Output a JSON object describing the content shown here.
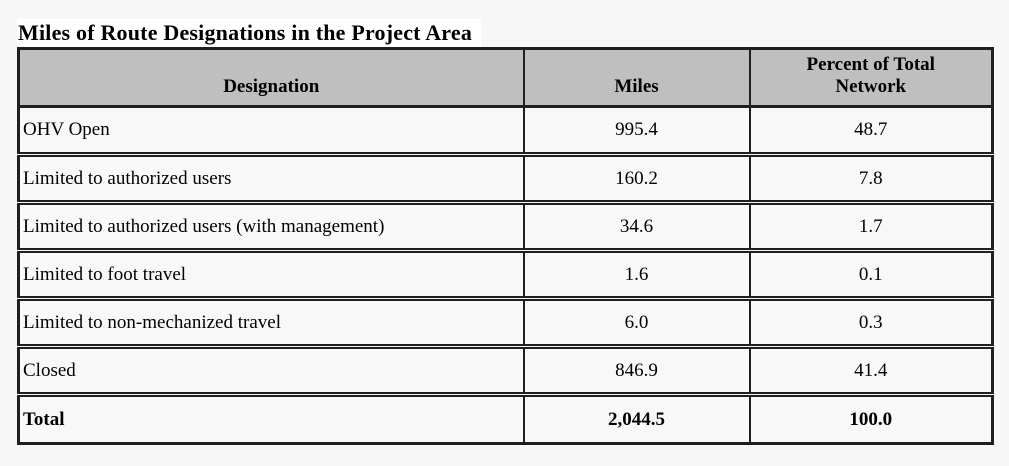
{
  "title": "Miles of Route Designations in the Project Area",
  "table": {
    "columns": {
      "designation": "Designation",
      "miles": "Miles",
      "percent": "Percent of Total Network"
    },
    "rows": [
      {
        "designation": "OHV Open",
        "miles": "995.4",
        "percent": "48.7"
      },
      {
        "designation": "Limited to authorized users",
        "miles": "160.2",
        "percent": "7.8"
      },
      {
        "designation": "Limited to authorized users (with management)",
        "miles": "34.6",
        "percent": "1.7"
      },
      {
        "designation": "Limited to foot travel",
        "miles": "1.6",
        "percent": "0.1"
      },
      {
        "designation": "Limited to non-mechanized travel",
        "miles": "6.0",
        "percent": "0.3"
      },
      {
        "designation": "Closed",
        "miles": "846.9",
        "percent": "41.4"
      }
    ],
    "total": {
      "designation": "Total",
      "miles": "2,044.5",
      "percent": "100.0"
    }
  },
  "colors": {
    "page_bg": "#f7f7f7",
    "title_bg": "#ffffff",
    "header_bg": "#bfbfbf",
    "cell_bg": "#f8f8f8",
    "border": "#1f1f1f",
    "text": "#000000"
  }
}
